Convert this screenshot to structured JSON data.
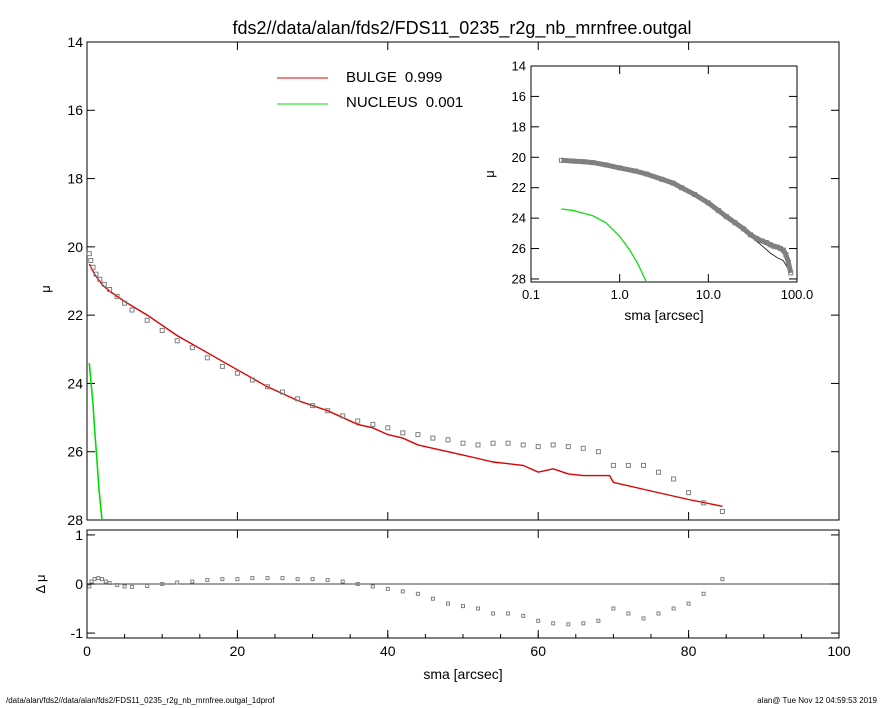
{
  "title": "fds2//data/alan/fds2/FDS11_0235_r2g_nb_mrnfree.outgal",
  "footer": {
    "left": "/data/alan/fds2//data/alan/fds2/FDS11_0235_r2g_nb_mrnfree.outgal_1dprof",
    "right": "alan@  Tue Nov 12 04:59:53 2019"
  },
  "colors": {
    "bulge": "#e00000",
    "nucleus": "#00dd00",
    "data": "#808080",
    "axis": "#000000"
  },
  "legend": [
    {
      "name": "BULGE",
      "value": "0.999",
      "color": "#e00000"
    },
    {
      "name": "NUCLEUS",
      "value": "0.001",
      "color": "#00dd00"
    }
  ],
  "chart_data": [
    {
      "id": "main",
      "type": "scatter",
      "xlabel": "",
      "ylabel": "μ",
      "xlim": [
        0,
        100
      ],
      "ylim": [
        28,
        14
      ],
      "yticks": [
        "14",
        "16",
        "18",
        "20",
        "22",
        "24",
        "26",
        "28"
      ],
      "data_points": {
        "x": [
          0.3,
          0.5,
          0.8,
          1.2,
          1.7,
          2.3,
          3.0,
          4.0,
          5.0,
          6.0,
          8.0,
          10.0,
          12.0,
          14.0,
          16.0,
          18.0,
          20.0,
          22.0,
          24.0,
          26.0,
          28.0,
          30.0,
          32.0,
          34.0,
          36.0,
          38.0,
          40.0,
          42.0,
          44.0,
          46.0,
          48.0,
          50.0,
          52.0,
          54.0,
          56.0,
          58.0,
          60.0,
          62.0,
          64.0,
          66.0,
          68.0,
          70.0,
          72.0,
          74.0,
          76.0,
          78.0,
          80.0,
          82.0,
          84.5
        ],
        "y": [
          20.2,
          20.4,
          20.6,
          20.8,
          20.95,
          21.1,
          21.25,
          21.45,
          21.65,
          21.85,
          22.15,
          22.45,
          22.75,
          22.95,
          23.25,
          23.5,
          23.7,
          23.9,
          24.1,
          24.25,
          24.45,
          24.65,
          24.8,
          24.95,
          25.1,
          25.2,
          25.3,
          25.45,
          25.5,
          25.6,
          25.65,
          25.75,
          25.8,
          25.75,
          25.75,
          25.8,
          25.85,
          25.8,
          25.85,
          25.9,
          26.0,
          26.4,
          26.4,
          26.4,
          26.6,
          26.8,
          27.2,
          27.5,
          27.75
        ]
      },
      "series": [
        {
          "name": "BULGE",
          "x": [
            0.3,
            1,
            2,
            3,
            5,
            8,
            12,
            16,
            20,
            24,
            28,
            32,
            36,
            38,
            40,
            42,
            44,
            46,
            48,
            50,
            52,
            54,
            56,
            58,
            60,
            62,
            64,
            66,
            68,
            69.5,
            70,
            75,
            80,
            84.5
          ],
          "y": [
            20.5,
            20.8,
            21.1,
            21.3,
            21.6,
            22.0,
            22.6,
            23.1,
            23.6,
            24.1,
            24.5,
            24.8,
            25.2,
            25.3,
            25.5,
            25.6,
            25.8,
            25.9,
            26.0,
            26.1,
            26.2,
            26.3,
            26.35,
            26.4,
            26.6,
            26.5,
            26.65,
            26.7,
            26.7,
            26.7,
            26.9,
            27.15,
            27.4,
            27.6
          ]
        },
        {
          "name": "NUCLEUS",
          "x": [
            0.3,
            0.5,
            0.8,
            1.0,
            1.3,
            1.6,
            2.0
          ],
          "y": [
            23.4,
            23.9,
            24.6,
            25.3,
            26.2,
            27.1,
            28.0
          ]
        }
      ]
    },
    {
      "id": "residual",
      "type": "scatter",
      "xlabel": "sma [arcsec]",
      "ylabel": "Δ μ",
      "xlim": [
        0,
        100
      ],
      "ylim": [
        -1.1,
        1.1
      ],
      "xticks": [
        "0",
        "20",
        "40",
        "60",
        "80",
        "100"
      ],
      "yticks": [
        "1",
        "0",
        "-1"
      ],
      "data_points": {
        "x": [
          0.3,
          0.6,
          1.0,
          1.5,
          2.0,
          2.5,
          3.0,
          4.0,
          5.0,
          6.0,
          8.0,
          10.0,
          12.0,
          14.0,
          16.0,
          18.0,
          20.0,
          22.0,
          24.0,
          26.0,
          28.0,
          30.0,
          32.0,
          34.0,
          36.0,
          38.0,
          40.0,
          42.0,
          44.0,
          46.0,
          48.0,
          50.0,
          52.0,
          54.0,
          56.0,
          58.0,
          60.0,
          62.0,
          64.0,
          66.0,
          68.0,
          70.0,
          72.0,
          74.0,
          76.0,
          78.0,
          80.0,
          82.0,
          84.5
        ],
        "y": [
          -0.05,
          0.05,
          0.1,
          0.12,
          0.1,
          0.05,
          0.02,
          -0.02,
          -0.05,
          -0.06,
          -0.04,
          0.0,
          0.03,
          0.05,
          0.08,
          0.1,
          0.1,
          0.12,
          0.12,
          0.12,
          0.1,
          0.1,
          0.08,
          0.05,
          0.0,
          -0.05,
          -0.1,
          -0.15,
          -0.2,
          -0.3,
          -0.4,
          -0.45,
          -0.5,
          -0.6,
          -0.6,
          -0.65,
          -0.75,
          -0.8,
          -0.82,
          -0.8,
          -0.75,
          -0.5,
          -0.6,
          -0.7,
          -0.6,
          -0.5,
          -0.4,
          -0.2,
          0.1
        ]
      }
    },
    {
      "id": "inset",
      "type": "scatter",
      "xscale": "log",
      "xlabel": "sma [arcsec]",
      "ylabel": "μ",
      "xlim": [
        0.1,
        100
      ],
      "ylim": [
        28.2,
        14
      ],
      "xticks": [
        "0.1",
        "1.0",
        "10.0",
        "100.0"
      ],
      "yticks": [
        "14",
        "16",
        "18",
        "20",
        "22",
        "24",
        "26",
        "28"
      ],
      "data_points": {
        "x": [
          0.22,
          0.3,
          0.4,
          0.5,
          0.7,
          1.0,
          1.5,
          2.0,
          3.0,
          4.0,
          5.0,
          7.0,
          10.0,
          13.0,
          16.0,
          20.0,
          25.0,
          30.0,
          35.0,
          40.0,
          45.0,
          50.0,
          55.0,
          60.0,
          65.0,
          70.0,
          75.0,
          80.0,
          85.0
        ],
        "y": [
          20.2,
          20.25,
          20.3,
          20.35,
          20.5,
          20.7,
          20.9,
          21.1,
          21.45,
          21.7,
          22.0,
          22.45,
          23.0,
          23.5,
          23.9,
          24.3,
          24.7,
          25.1,
          25.35,
          25.5,
          25.6,
          25.75,
          25.85,
          25.9,
          26.0,
          26.1,
          26.4,
          26.9,
          27.6
        ]
      },
      "series": [
        {
          "name": "BULGE",
          "x": [
            0.22,
            0.5,
            1.0,
            2.0,
            5.0,
            10.0,
            20.0,
            30.0,
            40.0,
            50.0,
            60.0,
            70.0,
            85.0
          ],
          "y": [
            20.3,
            20.4,
            20.8,
            21.2,
            22.0,
            23.0,
            24.3,
            25.2,
            25.8,
            26.3,
            26.6,
            26.8,
            27.6
          ]
        },
        {
          "name": "NUCLEUS",
          "x": [
            0.22,
            0.3,
            0.5,
            0.7,
            1.0,
            1.3,
            1.6,
            2.0
          ],
          "y": [
            23.4,
            23.5,
            23.85,
            24.3,
            25.2,
            26.1,
            27.0,
            28.2
          ]
        }
      ]
    }
  ]
}
